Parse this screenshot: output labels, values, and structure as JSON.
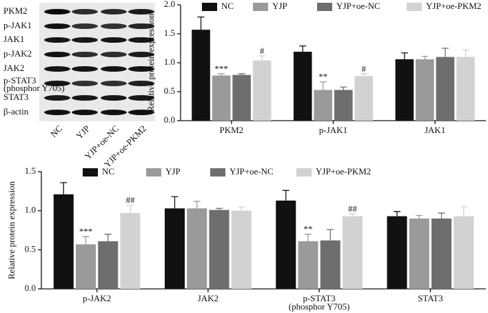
{
  "blot": {
    "rows": [
      "PKM2",
      "p-JAK1",
      "JAK1",
      "p-JAK2",
      "JAK2",
      "p-STAT3",
      "STAT3",
      "β-actin"
    ],
    "row_note": "(phosphor Y705)",
    "lanes": [
      "NC",
      "YJP",
      "YJP+oe-NC",
      "YJP+oe-PKM2"
    ]
  },
  "chart_data": [
    {
      "type": "bar",
      "y_label": "Relative protein expression",
      "categories": [
        "PKM2",
        "p-JAK1",
        "JAK1"
      ],
      "category_notes": [
        null,
        null,
        null
      ],
      "series": [
        {
          "name": "NC",
          "color": "#111111",
          "values": [
            1.57,
            1.19,
            1.06
          ],
          "errors": [
            0.22,
            0.1,
            0.11
          ],
          "annotations": [
            null,
            null,
            null
          ]
        },
        {
          "name": "YJP",
          "color": "#9a9a9a",
          "values": [
            0.78,
            0.53,
            1.06
          ],
          "errors": [
            0.03,
            0.14,
            0.05
          ],
          "annotations": [
            "***",
            "**",
            null
          ]
        },
        {
          "name": "YJP+oe-NC",
          "color": "#6e6e6e",
          "values": [
            0.79,
            0.53,
            1.1
          ],
          "errors": [
            0.02,
            0.05,
            0.15
          ],
          "annotations": [
            null,
            null,
            null
          ]
        },
        {
          "name": "YJP+oe-PKM2",
          "color": "#d2d2d2",
          "values": [
            1.04,
            0.77,
            1.1
          ],
          "errors": [
            0.08,
            0.04,
            0.12
          ],
          "annotations": [
            "#",
            "#",
            null
          ]
        }
      ],
      "ylim": [
        0,
        2
      ],
      "yticks": [
        {
          "value": 0,
          "label": "0.0"
        },
        {
          "value": 0.5,
          "label": "0.5"
        },
        {
          "value": 1,
          "label": "1.0"
        },
        {
          "value": 1.5,
          "label": "1.5"
        },
        {
          "value": 2,
          "label": "2.0"
        }
      ],
      "legend": "top"
    },
    {
      "type": "bar",
      "y_label": "Relative protein expression",
      "categories": [
        "p-JAK2",
        "JAK2",
        "p-STAT3",
        "STAT3"
      ],
      "category_notes": [
        null,
        null,
        "(phosphor Y705)",
        null
      ],
      "series": [
        {
          "name": "NC",
          "color": "#111111",
          "values": [
            1.21,
            1.03,
            1.13,
            0.93
          ],
          "errors": [
            0.15,
            0.15,
            0.13,
            0.06
          ],
          "annotations": [
            null,
            null,
            null,
            null
          ]
        },
        {
          "name": "YJP",
          "color": "#9a9a9a",
          "values": [
            0.57,
            1.03,
            0.61,
            0.9
          ],
          "errors": [
            0.1,
            0.09,
            0.09,
            0.04
          ],
          "annotations": [
            "***",
            null,
            "**",
            null
          ]
        },
        {
          "name": "YJP+oe-NC",
          "color": "#6e6e6e",
          "values": [
            0.61,
            1.01,
            0.62,
            0.9
          ],
          "errors": [
            0.09,
            0.02,
            0.14,
            0.07
          ],
          "annotations": [
            null,
            null,
            null,
            null
          ]
        },
        {
          "name": "YJP+oe-PKM2",
          "color": "#d2d2d2",
          "values": [
            0.97,
            1.0,
            0.93,
            0.93
          ],
          "errors": [
            0.1,
            0.05,
            0.03,
            0.12
          ],
          "annotations": [
            "##",
            null,
            "##",
            null
          ]
        }
      ],
      "ylim": [
        0,
        1.5
      ],
      "yticks": [
        {
          "value": 0,
          "label": "0.0"
        },
        {
          "value": 0.5,
          "label": "0.5"
        },
        {
          "value": 1,
          "label": "1.0"
        },
        {
          "value": 1.5,
          "label": "1.5"
        }
      ],
      "legend": "top"
    }
  ]
}
